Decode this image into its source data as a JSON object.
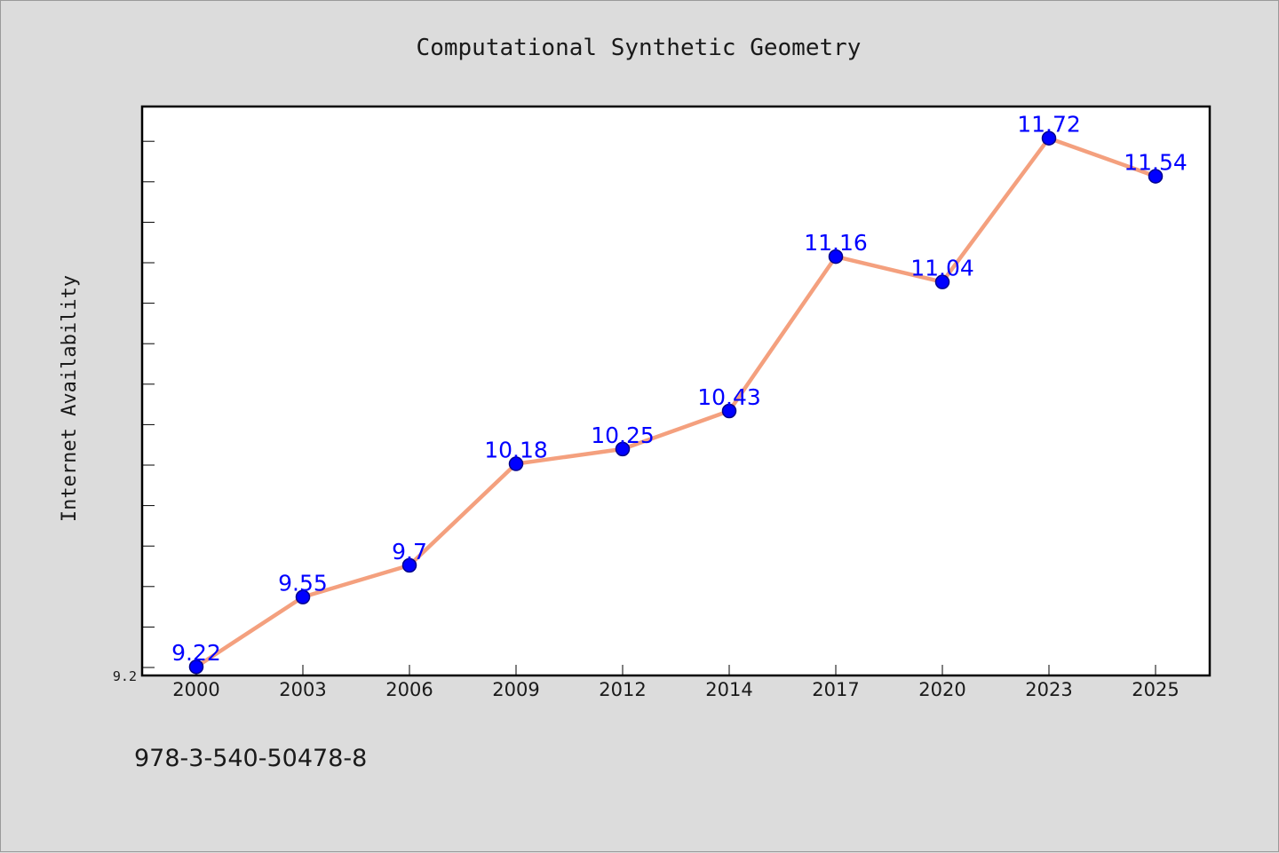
{
  "chart_data": {
    "type": "line",
    "title": "Computational Synthetic Geometry",
    "xlabel": "",
    "ylabel": "Internet Availability",
    "categories": [
      "2000",
      "2003",
      "2006",
      "2009",
      "2012",
      "2014",
      "2017",
      "2020",
      "2023",
      "2025"
    ],
    "series": [
      {
        "values": [
          9.22,
          9.55,
          9.7,
          10.18,
          10.25,
          10.43,
          11.16,
          11.04,
          11.72,
          11.54
        ]
      }
    ],
    "ylim": [
      9.2,
      12.0
    ],
    "y_ticks_labeled": [
      "9.2"
    ],
    "grid": false,
    "legend": "none",
    "colors": {
      "line": "#f4a07e",
      "marker": "#0000ff",
      "marker_edge": "#00008b",
      "data_label": "#0000ff",
      "plot_background": "#ffffff",
      "figure_background": "#dcdcdc"
    }
  },
  "footer": {
    "isbn": "978-3-540-50478-8"
  }
}
